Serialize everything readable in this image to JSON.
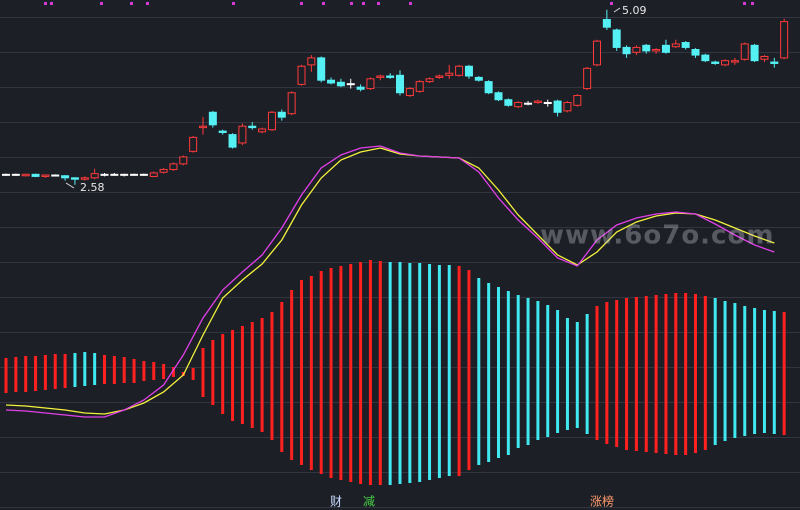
{
  "chart_data": [
    {
      "type": "candlestick",
      "open": [
        2.72,
        2.73,
        2.71,
        2.73,
        2.7,
        2.72,
        2.71,
        2.68,
        2.66,
        2.68,
        2.73,
        2.72,
        2.73,
        2.72,
        2.73,
        2.7,
        2.76,
        2.8,
        2.88,
        3.06,
        3.4,
        3.62,
        3.35,
        3.3,
        3.18,
        3.42,
        3.34,
        3.37,
        3.62,
        3.6,
        4.02,
        4.3,
        4.4,
        4.08,
        4.05,
        4.02,
        3.98,
        3.96,
        4.12,
        4.14,
        4.15,
        3.86,
        3.92,
        4.06,
        4.12,
        4.15,
        4.15,
        4.28,
        4.12,
        4.06,
        3.9,
        3.8,
        3.7,
        3.74,
        3.76,
        3.76,
        3.78,
        3.64,
        3.72,
        3.96,
        4.3,
        4.95,
        4.8,
        4.55,
        4.48,
        4.58,
        4.5,
        4.58,
        4.56,
        4.62,
        4.52,
        4.44,
        4.34,
        4.3,
        4.34,
        4.38,
        4.58,
        4.38,
        4.34,
        4.4
      ],
      "close": [
        2.73,
        2.72,
        2.73,
        2.7,
        2.72,
        2.71,
        2.68,
        2.66,
        2.68,
        2.74,
        2.72,
        2.73,
        2.72,
        2.73,
        2.72,
        2.75,
        2.8,
        2.88,
        2.98,
        3.26,
        3.42,
        3.44,
        3.33,
        3.12,
        3.42,
        3.4,
        3.38,
        3.62,
        3.55,
        3.9,
        4.28,
        4.4,
        4.08,
        4.04,
        4.0,
        4.03,
        3.95,
        4.1,
        4.14,
        4.12,
        3.9,
        3.96,
        4.06,
        4.1,
        4.14,
        4.18,
        4.28,
        4.14,
        4.08,
        3.9,
        3.8,
        3.72,
        3.76,
        3.75,
        3.78,
        3.75,
        3.62,
        3.76,
        3.86,
        4.25,
        4.64,
        4.84,
        4.55,
        4.46,
        4.55,
        4.5,
        4.52,
        4.48,
        4.6,
        4.55,
        4.44,
        4.36,
        4.32,
        4.36,
        4.36,
        4.6,
        4.36,
        4.42,
        4.32,
        4.92
      ],
      "high": [
        2.74,
        2.74,
        2.74,
        2.74,
        2.73,
        2.73,
        2.72,
        2.69,
        2.7,
        2.81,
        2.75,
        2.75,
        2.74,
        2.74,
        2.74,
        2.77,
        2.82,
        2.9,
        3.0,
        3.28,
        3.55,
        3.64,
        3.37,
        3.32,
        3.46,
        3.48,
        3.4,
        3.64,
        3.66,
        3.92,
        4.3,
        4.44,
        4.42,
        4.12,
        4.1,
        4.1,
        4.02,
        4.12,
        4.16,
        4.18,
        4.22,
        3.98,
        4.08,
        4.12,
        4.16,
        4.3,
        4.3,
        4.3,
        4.14,
        4.08,
        3.92,
        3.82,
        3.78,
        3.78,
        3.8,
        3.8,
        3.8,
        3.78,
        3.88,
        4.27,
        4.66,
        5.09,
        4.82,
        4.58,
        4.58,
        4.6,
        4.54,
        4.66,
        4.66,
        4.64,
        4.54,
        4.46,
        4.36,
        4.38,
        4.4,
        4.62,
        4.6,
        4.44,
        4.4,
        4.96
      ],
      "low": [
        2.71,
        2.71,
        2.7,
        2.69,
        2.68,
        2.7,
        2.64,
        2.58,
        2.64,
        2.66,
        2.7,
        2.71,
        2.7,
        2.71,
        2.71,
        2.69,
        2.74,
        2.78,
        2.86,
        3.04,
        3.3,
        3.4,
        3.3,
        3.1,
        3.15,
        3.37,
        3.32,
        3.35,
        3.5,
        3.58,
        4.0,
        4.2,
        4.05,
        4.02,
        3.98,
        3.96,
        3.92,
        3.94,
        4.08,
        4.1,
        3.86,
        3.84,
        3.9,
        4.04,
        4.1,
        4.1,
        4.13,
        4.1,
        4.06,
        3.88,
        3.78,
        3.7,
        3.68,
        3.72,
        3.74,
        3.7,
        3.56,
        3.62,
        3.7,
        3.94,
        4.28,
        4.8,
        4.5,
        4.4,
        4.44,
        4.46,
        4.46,
        4.46,
        4.54,
        4.52,
        4.4,
        4.34,
        4.3,
        4.28,
        4.3,
        4.36,
        4.34,
        4.34,
        4.26,
        4.38
      ],
      "up_color": "#ff3a3a",
      "down_color": "#54f0f4",
      "flat_color": "#ffffff",
      "ylim": [
        2.2,
        5.23
      ],
      "max_label": "5.09",
      "min_label": "2.58"
    },
    {
      "type": "line",
      "x": [
        0,
        2,
        4,
        6,
        8,
        10,
        12,
        14,
        16,
        18,
        20,
        22,
        24,
        26,
        28,
        30,
        32,
        34,
        36,
        38,
        40,
        42,
        44,
        46,
        48,
        50,
        52,
        54,
        56,
        58,
        60,
        62,
        64,
        66,
        68,
        70,
        72,
        74,
        76,
        78
      ],
      "series": [
        {
          "color": "#f2f23c",
          "values": [
            105,
            104,
            102,
            100,
            97,
            96,
            100,
            107,
            118,
            135,
            175,
            212,
            230,
            246,
            270,
            305,
            332,
            350,
            358,
            362,
            356,
            354,
            353,
            352,
            342,
            320,
            295,
            275,
            255,
            245,
            258,
            278,
            288,
            294,
            297,
            296,
            290,
            282,
            274,
            267
          ]
        },
        {
          "color": "#e040e8",
          "values": [
            100,
            99,
            97,
            95,
            93,
            93,
            100,
            110,
            125,
            155,
            192,
            220,
            238,
            255,
            282,
            315,
            342,
            355,
            362,
            364,
            357,
            354,
            353,
            352,
            338,
            312,
            290,
            272,
            252,
            244,
            270,
            285,
            292,
            296,
            298,
            296,
            286,
            275,
            265,
            258
          ]
        }
      ],
      "ylim": [
        0,
        510
      ]
    },
    {
      "type": "range-bar",
      "upper": [
        152,
        153,
        154,
        154,
        155,
        156,
        156,
        157,
        158,
        157,
        155,
        154,
        153,
        151,
        149,
        148,
        146,
        143,
        138,
        142,
        162,
        170,
        176,
        180,
        184,
        188,
        192,
        198,
        208,
        220,
        230,
        234,
        239,
        242,
        244,
        246,
        248,
        250,
        249,
        248,
        248,
        247,
        247,
        246,
        245,
        245,
        244,
        240,
        232,
        227,
        223,
        219,
        215,
        212,
        209,
        205,
        200,
        192,
        188,
        196,
        204,
        208,
        210,
        212,
        213,
        214,
        215,
        216,
        217,
        217,
        216,
        214,
        212,
        209,
        207,
        204,
        202,
        200,
        199,
        198
      ],
      "lower": [
        117,
        118,
        118,
        119,
        120,
        121,
        122,
        123,
        124,
        125,
        126,
        126,
        127,
        127,
        129,
        130,
        131,
        133,
        134,
        130,
        113,
        105,
        96,
        89,
        86,
        82,
        78,
        70,
        58,
        50,
        45,
        40,
        36,
        32,
        30,
        28,
        26,
        25,
        25,
        25,
        26,
        27,
        28,
        30,
        32,
        34,
        34,
        40,
        45,
        48,
        52,
        55,
        62,
        65,
        70,
        73,
        77,
        80,
        82,
        76,
        70,
        66,
        63,
        60,
        59,
        58,
        57,
        56,
        55,
        55,
        57,
        60,
        65,
        69,
        72,
        74,
        76,
        77,
        76,
        75
      ],
      "colors": [
        "#ff2020",
        "#ff2020",
        "#ff2020",
        "#ff2020",
        "#ff2020",
        "#ff2020",
        "#ff2020",
        "#40e8f0",
        "#40e8f0",
        "#40e8f0",
        "#ff2020",
        "#ff2020",
        "#ff2020",
        "#ff2020",
        "#ff2020",
        "#ff2020",
        "#ff2020",
        "#ff2020",
        "#ff2020",
        "#ff2020",
        "#ff2020",
        "#ff2020",
        "#ff2020",
        "#ff2020",
        "#ff2020",
        "#ff2020",
        "#ff2020",
        "#ff2020",
        "#ff2020",
        "#ff2020",
        "#ff2020",
        "#ff2020",
        "#ff2020",
        "#ff2020",
        "#ff2020",
        "#ff2020",
        "#ff2020",
        "#ff2020",
        "#ff2020",
        "#40e8f0",
        "#40e8f0",
        "#40e8f0",
        "#40e8f0",
        "#40e8f0",
        "#40e8f0",
        "#40e8f0",
        "#ff2020",
        "#ff2020",
        "#40e8f0",
        "#40e8f0",
        "#40e8f0",
        "#40e8f0",
        "#40e8f0",
        "#40e8f0",
        "#40e8f0",
        "#40e8f0",
        "#40e8f0",
        "#40e8f0",
        "#40e8f0",
        "#40e8f0",
        "#ff2020",
        "#ff2020",
        "#ff2020",
        "#ff2020",
        "#ff2020",
        "#ff2020",
        "#ff2020",
        "#ff2020",
        "#ff2020",
        "#ff2020",
        "#ff2020",
        "#ff2020",
        "#40e8f0",
        "#40e8f0",
        "#40e8f0",
        "#40e8f0",
        "#40e8f0",
        "#40e8f0",
        "#40e8f0",
        "#ff2020"
      ],
      "ylim": [
        0,
        510
      ]
    }
  ],
  "watermark": "www.6o7o.com",
  "footer_labels": [
    "财",
    "减",
    "涨榜"
  ]
}
